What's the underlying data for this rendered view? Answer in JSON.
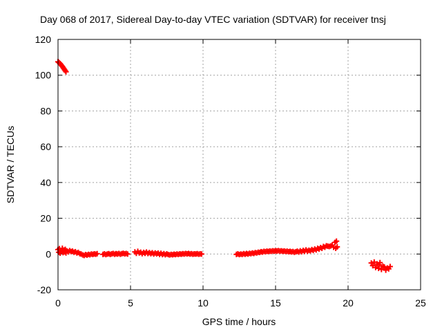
{
  "chart_data": {
    "type": "scatter",
    "title": "Day 068 of 2017, Sidereal Day-to-day VTEC variation (SDTVAR) for receiver tnsj",
    "xlabel": "GPS time / hours",
    "ylabel": "SDTVAR / TECUs",
    "xlim": [
      0,
      25
    ],
    "ylim": [
      -20,
      120
    ],
    "xticks": [
      0,
      5,
      10,
      15,
      20,
      25
    ],
    "yticks": [
      -20,
      0,
      20,
      40,
      60,
      80,
      100,
      120
    ],
    "grid": true,
    "marker": "plus",
    "colors": {
      "series": "#ff0000",
      "grid": "#a0a0a0",
      "axis": "#000000"
    },
    "series": [
      {
        "points": [
          [
            0.0,
            107.5
          ],
          [
            0.05,
            107.2
          ],
          [
            0.1,
            106.8
          ],
          [
            0.15,
            106.4
          ],
          [
            0.2,
            105.9
          ],
          [
            0.25,
            105.4
          ],
          [
            0.3,
            104.9
          ],
          [
            0.35,
            104.3
          ],
          [
            0.4,
            103.7
          ],
          [
            0.45,
            103.1
          ],
          [
            0.5,
            102.5
          ],
          [
            0.55,
            101.9
          ],
          [
            0.0,
            2.5
          ],
          [
            0.05,
            1.0
          ],
          [
            0.1,
            3.0
          ],
          [
            0.15,
            0.5
          ],
          [
            0.2,
            2.0
          ],
          [
            0.25,
            1.5
          ],
          [
            0.3,
            3.2
          ],
          [
            0.35,
            0.8
          ],
          [
            0.4,
            2.2
          ],
          [
            0.45,
            1.2
          ],
          [
            0.5,
            2.6
          ],
          [
            0.55,
            0.6
          ],
          [
            0.6,
            1.8
          ],
          [
            0.7,
            1.2
          ],
          [
            0.8,
            1.9
          ],
          [
            0.9,
            1.4
          ],
          [
            1.0,
            1.6
          ],
          [
            1.1,
            1.0
          ],
          [
            1.2,
            1.3
          ],
          [
            1.3,
            0.6
          ],
          [
            1.4,
            0.9
          ],
          [
            1.5,
            0.2
          ],
          [
            1.6,
            0.0
          ],
          [
            1.7,
            -0.5
          ],
          [
            1.8,
            -0.8
          ],
          [
            1.9,
            -0.3
          ],
          [
            2.0,
            -0.6
          ],
          [
            2.1,
            -0.2
          ],
          [
            2.2,
            -0.4
          ],
          [
            2.3,
            0.0
          ],
          [
            2.4,
            -0.2
          ],
          [
            2.5,
            0.1
          ],
          [
            2.6,
            -0.1
          ],
          [
            2.7,
            0.2
          ],
          [
            3.1,
            -0.2
          ],
          [
            3.2,
            0.1
          ],
          [
            3.3,
            -0.3
          ],
          [
            3.4,
            0.0
          ],
          [
            3.5,
            0.2
          ],
          [
            3.6,
            -0.2
          ],
          [
            3.7,
            0.1
          ],
          [
            3.8,
            0.3
          ],
          [
            3.9,
            -0.1
          ],
          [
            4.0,
            0.2
          ],
          [
            4.1,
            0.0
          ],
          [
            4.2,
            0.3
          ],
          [
            4.3,
            -0.1
          ],
          [
            4.4,
            0.2
          ],
          [
            4.5,
            0.4
          ],
          [
            4.6,
            0.1
          ],
          [
            4.7,
            0.3
          ],
          [
            4.8,
            0.0
          ],
          [
            5.3,
            1.2
          ],
          [
            5.4,
            0.4
          ],
          [
            5.5,
            1.5
          ],
          [
            5.6,
            0.6
          ],
          [
            5.7,
            1.0
          ],
          [
            5.8,
            0.2
          ],
          [
            5.9,
            0.9
          ],
          [
            6.0,
            0.4
          ],
          [
            6.1,
            1.1
          ],
          [
            6.2,
            0.3
          ],
          [
            6.3,
            0.8
          ],
          [
            6.4,
            0.2
          ],
          [
            6.5,
            0.7
          ],
          [
            6.6,
            0.0
          ],
          [
            6.7,
            0.6
          ],
          [
            6.8,
            0.1
          ],
          [
            6.9,
            0.5
          ],
          [
            7.0,
            -0.2
          ],
          [
            7.1,
            0.4
          ],
          [
            7.2,
            -0.3
          ],
          [
            7.3,
            0.2
          ],
          [
            7.4,
            -0.4
          ],
          [
            7.5,
            0.1
          ],
          [
            7.6,
            -0.3
          ],
          [
            7.7,
            -0.5
          ],
          [
            7.8,
            -0.2
          ],
          [
            7.9,
            -0.4
          ],
          [
            8.0,
            -0.1
          ],
          [
            8.1,
            -0.3
          ],
          [
            8.2,
            0.0
          ],
          [
            8.3,
            -0.2
          ],
          [
            8.4,
            0.1
          ],
          [
            8.5,
            -0.1
          ],
          [
            8.6,
            0.2
          ],
          [
            8.7,
            0.0
          ],
          [
            8.8,
            0.3
          ],
          [
            8.9,
            0.1
          ],
          [
            9.0,
            0.3
          ],
          [
            9.1,
            0.0
          ],
          [
            9.2,
            0.2
          ],
          [
            9.3,
            -0.1
          ],
          [
            9.4,
            0.1
          ],
          [
            9.5,
            0.0
          ],
          [
            9.6,
            0.2
          ],
          [
            9.7,
            -0.1
          ],
          [
            9.8,
            0.1
          ],
          [
            9.9,
            0.0
          ],
          [
            12.3,
            -0.2
          ],
          [
            12.4,
            0.1
          ],
          [
            12.5,
            -0.3
          ],
          [
            12.6,
            0.0
          ],
          [
            12.7,
            -0.2
          ],
          [
            12.8,
            0.2
          ],
          [
            12.9,
            -0.1
          ],
          [
            13.0,
            0.3
          ],
          [
            13.1,
            0.0
          ],
          [
            13.2,
            0.4
          ],
          [
            13.3,
            0.2
          ],
          [
            13.4,
            0.6
          ],
          [
            13.5,
            0.3
          ],
          [
            13.6,
            0.8
          ],
          [
            13.7,
            0.6
          ],
          [
            13.8,
            1.0
          ],
          [
            13.9,
            0.9
          ],
          [
            14.0,
            1.3
          ],
          [
            14.1,
            1.1
          ],
          [
            14.2,
            1.5
          ],
          [
            14.3,
            1.3
          ],
          [
            14.4,
            1.6
          ],
          [
            14.5,
            1.4
          ],
          [
            14.6,
            1.7
          ],
          [
            14.7,
            1.5
          ],
          [
            14.8,
            1.8
          ],
          [
            14.9,
            1.6
          ],
          [
            15.0,
            1.8
          ],
          [
            15.1,
            1.7
          ],
          [
            15.2,
            1.9
          ],
          [
            15.3,
            1.6
          ],
          [
            15.4,
            1.8
          ],
          [
            15.5,
            1.5
          ],
          [
            15.6,
            1.7
          ],
          [
            15.7,
            1.4
          ],
          [
            15.8,
            1.6
          ],
          [
            15.9,
            1.3
          ],
          [
            16.0,
            1.5
          ],
          [
            16.1,
            1.2
          ],
          [
            16.2,
            1.4
          ],
          [
            16.3,
            1.0
          ],
          [
            16.4,
            1.3
          ],
          [
            16.5,
            1.6
          ],
          [
            16.6,
            1.1
          ],
          [
            16.7,
            1.8
          ],
          [
            16.8,
            1.3
          ],
          [
            16.9,
            2.0
          ],
          [
            17.0,
            1.5
          ],
          [
            17.1,
            2.3
          ],
          [
            17.2,
            1.6
          ],
          [
            17.3,
            2.1
          ],
          [
            17.4,
            1.8
          ],
          [
            17.5,
            2.5
          ],
          [
            17.6,
            2.0
          ],
          [
            17.7,
            2.8
          ],
          [
            17.8,
            2.3
          ],
          [
            17.9,
            3.2
          ],
          [
            18.0,
            2.8
          ],
          [
            18.1,
            3.6
          ],
          [
            18.2,
            3.2
          ],
          [
            18.3,
            4.2
          ],
          [
            18.4,
            3.8
          ],
          [
            18.5,
            4.6
          ],
          [
            18.6,
            4.4
          ],
          [
            18.7,
            4.2
          ],
          [
            18.8,
            4.5
          ],
          [
            18.9,
            5.0
          ],
          [
            19.0,
            3.8
          ],
          [
            19.1,
            6.5
          ],
          [
            19.15,
            3.2
          ],
          [
            19.2,
            7.2
          ],
          [
            19.25,
            4.0
          ],
          [
            21.6,
            -5.0
          ],
          [
            21.7,
            -6.5
          ],
          [
            21.8,
            -4.5
          ],
          [
            21.9,
            -7.5
          ],
          [
            22.0,
            -5.5
          ],
          [
            22.1,
            -8.0
          ],
          [
            22.15,
            -6.0
          ],
          [
            22.2,
            -4.8
          ],
          [
            22.3,
            -8.6
          ],
          [
            22.4,
            -6.8
          ],
          [
            22.5,
            -7.2
          ],
          [
            22.6,
            -9.0
          ],
          [
            22.7,
            -7.8
          ],
          [
            22.8,
            -8.3
          ],
          [
            22.9,
            -7.0
          ]
        ]
      }
    ]
  }
}
